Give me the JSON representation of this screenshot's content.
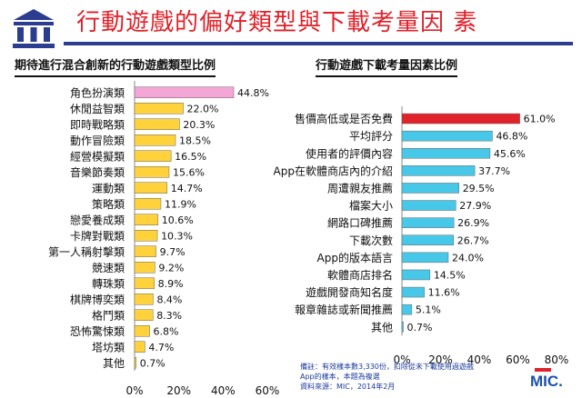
{
  "header": {
    "title": "行動遊戲的偏好類型與下載考量因 素",
    "logo_icon": "columns-building-icon"
  },
  "colors": {
    "title": "#e0222a",
    "rule": "#2a3d8f",
    "left_highlight": "#f4a6d6",
    "left_bars": "#ffd23c",
    "right_highlight": "#e0222a",
    "right_bars": "#48c8e8"
  },
  "chart_data": [
    {
      "type": "bar",
      "orientation": "horizontal",
      "title": "期待進行混合創新的行動遊戲類型比例",
      "categories": [
        "角色扮演類",
        "休閒益智類",
        "即時戰略類",
        "動作冒險類",
        "經營模擬類",
        "音樂節奏類",
        "運動類",
        "策略類",
        "戀愛養成類",
        "卡牌對戰類",
        "第一人稱射擊類",
        "競速類",
        "轉珠類",
        "棋牌博奕類",
        "格鬥類",
        "恐怖驚悚類",
        "塔坊類",
        "其他"
      ],
      "values": [
        44.8,
        22.0,
        20.3,
        18.5,
        16.5,
        15.6,
        14.7,
        11.9,
        10.6,
        10.3,
        9.7,
        9.2,
        8.9,
        8.4,
        8.3,
        6.8,
        4.7,
        0.7
      ],
      "value_labels": [
        "44.8%",
        "22.0%",
        "20.3%",
        "18.5%",
        "16.5%",
        "15.6%",
        "14.7%",
        "11.9%",
        "10.6%",
        "10.3%",
        "9.7%",
        "9.2%",
        "8.9%",
        "8.4%",
        "8.3%",
        "6.8%",
        "4.7%",
        "0.7%"
      ],
      "highlight_index": 0,
      "xlim": [
        0,
        60
      ],
      "xticks": [
        "0%",
        "20%",
        "40%",
        "60%"
      ]
    },
    {
      "type": "bar",
      "orientation": "horizontal",
      "title": "行動遊戲下載考量因素比例",
      "categories": [
        "售價高低或是否免費",
        "平均評分",
        "使用者的評價內容",
        "App在軟體商店內的介紹",
        "周遭親友推薦",
        "檔案大小",
        "網路口碑推薦",
        "下載次數",
        "App的版本語言",
        "軟體商店排名",
        "遊戲開發商知名度",
        "報章雜誌或新聞推薦",
        "其他"
      ],
      "values": [
        61.0,
        46.8,
        45.6,
        37.7,
        29.5,
        27.9,
        26.9,
        26.7,
        24.0,
        14.5,
        11.6,
        5.1,
        0.7
      ],
      "value_labels": [
        "61.0%",
        "46.8%",
        "45.6%",
        "37.7%",
        "29.5%",
        "27.9%",
        "26.9%",
        "26.7%",
        "24.0%",
        "14.5%",
        "11.6%",
        "5.1%",
        "0.7%"
      ],
      "highlight_index": 0,
      "xlim": [
        0,
        80
      ],
      "xticks": [
        "0%",
        "20%",
        "40%",
        "60%",
        "80%"
      ]
    }
  ],
  "footnote": {
    "line1": "備註：有效樣本數3,330份，扣除從未下載使用過遊戲",
    "line2": "App的樣本，本題為複選",
    "line3": "資料來源：MIC，2014年2月"
  },
  "brand": "MIC."
}
